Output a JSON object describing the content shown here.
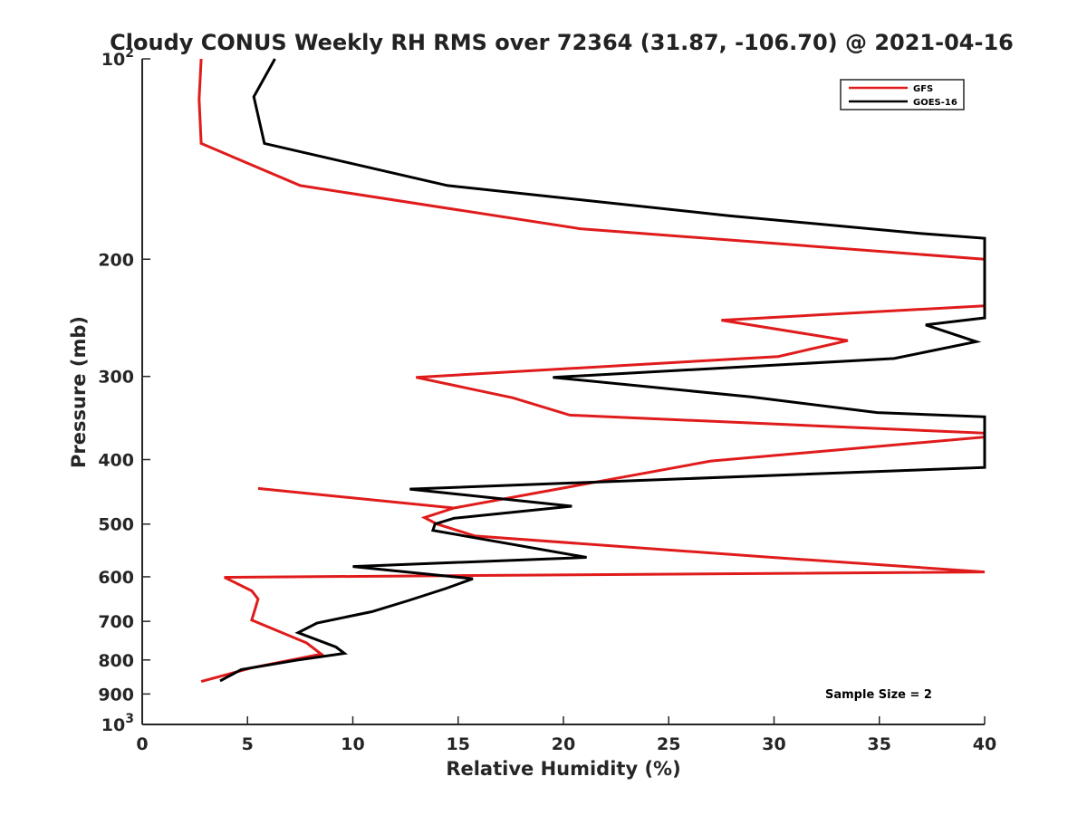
{
  "chart_data": {
    "type": "line",
    "title": "Cloudy CONUS Weekly RH RMS over 72364 (31.87, -106.70) @ 2021-04-16",
    "xlabel": "Relative Humidity (%)",
    "ylabel": "Pressure (mb)",
    "xlim": [
      0,
      40
    ],
    "ylim": [
      100,
      1000
    ],
    "y_scale": "log",
    "y_reversed": true,
    "x_ticks": [
      0,
      5,
      10,
      15,
      20,
      25,
      30,
      35,
      40
    ],
    "y_ticks": [
      {
        "value": 100,
        "label": "10",
        "sup": "2"
      },
      {
        "value": 200,
        "label": "200",
        "sup": ""
      },
      {
        "value": 300,
        "label": "300",
        "sup": ""
      },
      {
        "value": 400,
        "label": "400",
        "sup": ""
      },
      {
        "value": 500,
        "label": "500",
        "sup": ""
      },
      {
        "value": 600,
        "label": "600",
        "sup": ""
      },
      {
        "value": 700,
        "label": "700",
        "sup": ""
      },
      {
        "value": 800,
        "label": "800",
        "sup": ""
      },
      {
        "value": 900,
        "label": "900",
        "sup": ""
      },
      {
        "value": 1000,
        "label": "10",
        "sup": "3"
      }
    ],
    "grid": false,
    "legend": "top-right",
    "annotation": "Sample Size = 2",
    "series": [
      {
        "name": "GFS",
        "color": "#e01b1b",
        "x": [
          2.8,
          2.7,
          2.8,
          7.5,
          20.8,
          40,
          40,
          40,
          27.5,
          33.5,
          30.2,
          13,
          17.6,
          20.3,
          40,
          40,
          27,
          14.8,
          5.5,
          14.8,
          13.4,
          14,
          15.8,
          29.9,
          40,
          3.9,
          5.2,
          5.5,
          5.4,
          5.2,
          7.8,
          8.5,
          5.2,
          2.8
        ],
        "y": [
          100,
          115,
          134,
          155,
          180,
          200,
          235,
          235,
          247,
          265,
          280,
          301,
          323,
          343,
          365,
          370,
          402,
          473,
          442,
          473,
          489,
          500,
          521,
          561,
          590,
          601,
          630,
          648,
          664,
          697,
          754,
          784,
          822,
          862
        ]
      },
      {
        "name": "GOES-16",
        "color": "#000000",
        "x": [
          6.3,
          5.3,
          5.8,
          14.5,
          27.8,
          37,
          40,
          40,
          37.2,
          39.6,
          35.7,
          19.5,
          28.9,
          34.9,
          40,
          40,
          12.7,
          20.4,
          14.8,
          13.9,
          13.8,
          21.1,
          10,
          15.7,
          14.4,
          12.6,
          10.9,
          8.3,
          7.4,
          9.2,
          9.6,
          7.3,
          4.7,
          3.7
        ],
        "y": [
          100,
          114,
          134,
          155,
          172,
          183,
          186,
          245,
          251,
          266,
          282,
          301,
          322,
          340,
          345,
          411,
          443,
          470,
          490,
          500,
          511,
          561,
          579,
          604,
          625,
          652,
          677,
          704,
          728,
          765,
          782,
          801,
          827,
          860
        ]
      }
    ]
  }
}
